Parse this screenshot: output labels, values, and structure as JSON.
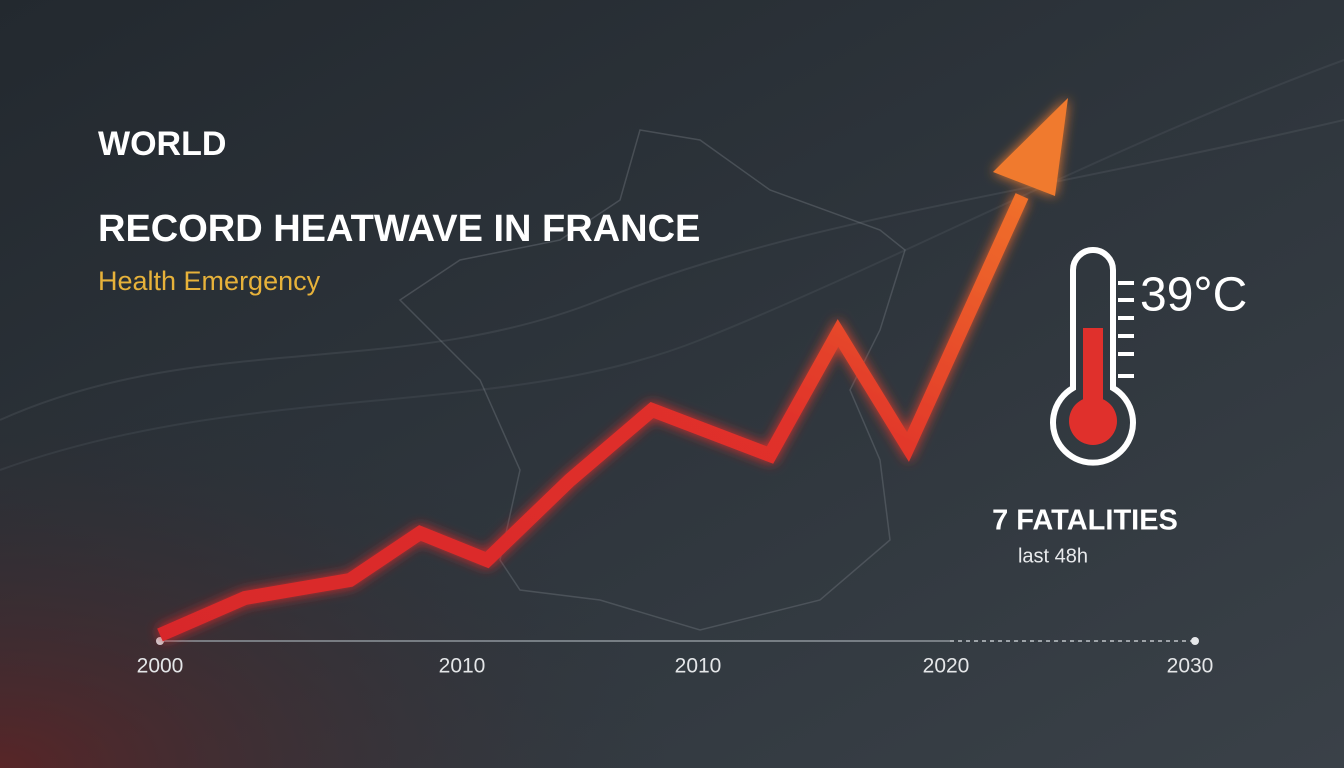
{
  "header": {
    "section": "WORLD",
    "title": "RECORD HEATWAVE IN FRANCE",
    "subtitle": "Health Emergency"
  },
  "temperature": "39°C",
  "fatalities": {
    "label": "7 FATALITIES",
    "period": "last 48h"
  },
  "axis_labels": [
    "2000",
    "2010",
    "2010",
    "2020",
    "2030"
  ]
}
